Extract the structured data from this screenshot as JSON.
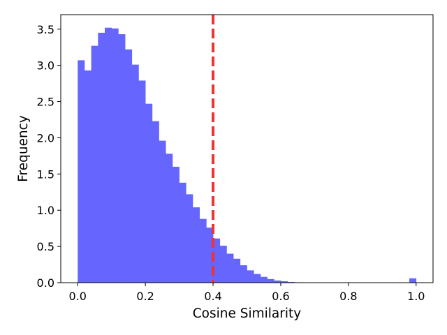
{
  "chart_data": {
    "type": "bar",
    "title": "",
    "xlabel": "Cosine Similarity",
    "ylabel": "Frequency",
    "xlim": [
      -0.05,
      1.05
    ],
    "ylim": [
      0,
      3.7
    ],
    "xticks": [
      0.0,
      0.2,
      0.4,
      0.6,
      0.8,
      1.0
    ],
    "xtick_labels": [
      "0.0",
      "0.2",
      "0.4",
      "0.6",
      "0.8",
      "1.0"
    ],
    "yticks": [
      0.0,
      0.5,
      1.0,
      1.5,
      2.0,
      2.5,
      3.0,
      3.5
    ],
    "ytick_labels": [
      "0.0",
      "0.5",
      "1.0",
      "1.5",
      "2.0",
      "2.5",
      "3.0",
      "3.5"
    ],
    "grid": false,
    "legend": "none",
    "bar_color": "#6666ff",
    "bin_width": 0.02,
    "bin_starts": [
      0.0,
      0.02,
      0.04,
      0.06,
      0.08,
      0.1,
      0.12,
      0.14,
      0.16,
      0.18,
      0.2,
      0.22,
      0.24,
      0.26,
      0.28,
      0.3,
      0.32,
      0.34,
      0.36,
      0.38,
      0.4,
      0.42,
      0.44,
      0.46,
      0.48,
      0.5,
      0.52,
      0.54,
      0.56,
      0.58,
      0.6,
      0.62,
      0.64,
      0.98
    ],
    "values": [
      3.07,
      2.93,
      3.27,
      3.45,
      3.52,
      3.51,
      3.43,
      3.22,
      3.01,
      2.79,
      2.47,
      2.23,
      1.96,
      1.78,
      1.6,
      1.38,
      1.22,
      1.04,
      0.88,
      0.76,
      0.61,
      0.51,
      0.4,
      0.33,
      0.24,
      0.17,
      0.12,
      0.08,
      0.05,
      0.03,
      0.02,
      0.01,
      0.005,
      0.06
    ],
    "threshold": {
      "x": 0.4,
      "color": "#ee3333",
      "style": "dashed"
    }
  }
}
